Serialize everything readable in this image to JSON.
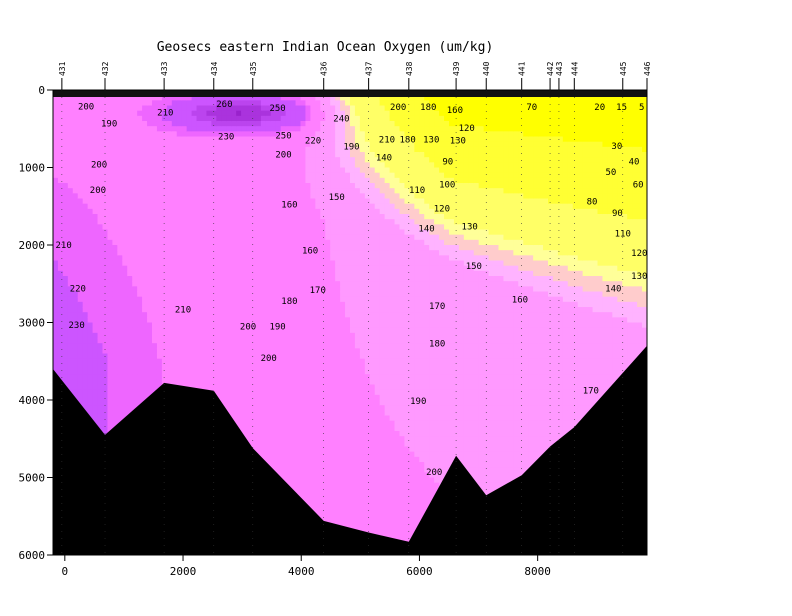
{
  "chart_data": {
    "type": "contour",
    "title": "Geosecs eastern Indian Ocean Oxygen (um/kg)",
    "xlabel": "",
    "ylabel": "",
    "xlim": [
      -200,
      9850
    ],
    "ylim": [
      6000,
      0
    ],
    "x_ticks": [
      0,
      2000,
      4000,
      6000,
      8000
    ],
    "y_ticks": [
      0,
      1000,
      2000,
      3000,
      4000,
      5000,
      6000
    ],
    "stations": [
      {
        "name": "431",
        "x": -50
      },
      {
        "name": "432",
        "x": 680
      },
      {
        "name": "433",
        "x": 1680
      },
      {
        "name": "434",
        "x": 2520
      },
      {
        "name": "435",
        "x": 3180
      },
      {
        "name": "436",
        "x": 4380
      },
      {
        "name": "437",
        "x": 5140
      },
      {
        "name": "438",
        "x": 5820
      },
      {
        "name": "439",
        "x": 6620
      },
      {
        "name": "440",
        "x": 7130
      },
      {
        "name": "441",
        "x": 7730
      },
      {
        "name": "442",
        "x": 8210
      },
      {
        "name": "443",
        "x": 8360
      },
      {
        "name": "444",
        "x": 8620
      },
      {
        "name": "445",
        "x": 9440
      },
      {
        "name": "446",
        "x": 9850
      }
    ],
    "color_levels": [
      {
        "min": 0,
        "color": "#ffff00"
      },
      {
        "min": 40,
        "color": "#ffff33"
      },
      {
        "min": 100,
        "color": "#ffff66"
      },
      {
        "min": 140,
        "color": "#ffff99"
      },
      {
        "min": 150,
        "color": "#ffcccc"
      },
      {
        "min": 160,
        "color": "#ffb3ff"
      },
      {
        "min": 170,
        "color": "#ff99ff"
      },
      {
        "min": 190,
        "color": "#ff80ff"
      },
      {
        "min": 210,
        "color": "#ee66ff"
      },
      {
        "min": 220,
        "color": "#cc55ff"
      },
      {
        "min": 240,
        "color": "#bb44ee"
      },
      {
        "min": 250,
        "color": "#aa33dd"
      },
      {
        "min": 260,
        "color": "#9922cc"
      }
    ],
    "contour_labels": [
      {
        "text": "200",
        "x": 360,
        "y": 210
      },
      {
        "text": "190",
        "x": 750,
        "y": 430
      },
      {
        "text": "210",
        "x": 1700,
        "y": 290
      },
      {
        "text": "200",
        "x": 580,
        "y": 960
      },
      {
        "text": "260",
        "x": 2700,
        "y": 180
      },
      {
        "text": "250",
        "x": 3600,
        "y": 230
      },
      {
        "text": "230",
        "x": 2730,
        "y": 600
      },
      {
        "text": "250",
        "x": 3700,
        "y": 590
      },
      {
        "text": "240",
        "x": 4680,
        "y": 370
      },
      {
        "text": "220",
        "x": 4200,
        "y": 650
      },
      {
        "text": "190",
        "x": 4850,
        "y": 730
      },
      {
        "text": "200",
        "x": 3700,
        "y": 830
      },
      {
        "text": "210",
        "x": 5450,
        "y": 640
      },
      {
        "text": "180",
        "x": 5800,
        "y": 640
      },
      {
        "text": "130",
        "x": 6200,
        "y": 640
      },
      {
        "text": "140",
        "x": 5400,
        "y": 870
      },
      {
        "text": "200",
        "x": 5640,
        "y": 220
      },
      {
        "text": "180",
        "x": 6150,
        "y": 220
      },
      {
        "text": "160",
        "x": 6600,
        "y": 260
      },
      {
        "text": "120",
        "x": 6800,
        "y": 490
      },
      {
        "text": "130",
        "x": 6650,
        "y": 650
      },
      {
        "text": "70",
        "x": 7900,
        "y": 220
      },
      {
        "text": "20",
        "x": 9050,
        "y": 220
      },
      {
        "text": "15",
        "x": 9420,
        "y": 220
      },
      {
        "text": "5",
        "x": 9760,
        "y": 220
      },
      {
        "text": "30",
        "x": 9340,
        "y": 720
      },
      {
        "text": "40",
        "x": 9630,
        "y": 920
      },
      {
        "text": "50",
        "x": 9240,
        "y": 1060
      },
      {
        "text": "60",
        "x": 9700,
        "y": 1220
      },
      {
        "text": "80",
        "x": 8920,
        "y": 1440
      },
      {
        "text": "90",
        "x": 9350,
        "y": 1590
      },
      {
        "text": "90",
        "x": 6480,
        "y": 920
      },
      {
        "text": "100",
        "x": 6470,
        "y": 1220
      },
      {
        "text": "110",
        "x": 5960,
        "y": 1290
      },
      {
        "text": "120",
        "x": 6380,
        "y": 1530
      },
      {
        "text": "130",
        "x": 6850,
        "y": 1760
      },
      {
        "text": "140",
        "x": 6120,
        "y": 1790
      },
      {
        "text": "110",
        "x": 9440,
        "y": 1850
      },
      {
        "text": "120",
        "x": 9720,
        "y": 2100
      },
      {
        "text": "130",
        "x": 9720,
        "y": 2400
      },
      {
        "text": "140",
        "x": 9280,
        "y": 2560
      },
      {
        "text": "150",
        "x": 6920,
        "y": 2270
      },
      {
        "text": "150",
        "x": 4600,
        "y": 1380
      },
      {
        "text": "160",
        "x": 3800,
        "y": 1480
      },
      {
        "text": "160",
        "x": 4150,
        "y": 2070
      },
      {
        "text": "160",
        "x": 7700,
        "y": 2700
      },
      {
        "text": "170",
        "x": 4280,
        "y": 2580
      },
      {
        "text": "170",
        "x": 6300,
        "y": 2790
      },
      {
        "text": "170",
        "x": 8900,
        "y": 3880
      },
      {
        "text": "180",
        "x": 3800,
        "y": 2720
      },
      {
        "text": "180",
        "x": 6300,
        "y": 3270
      },
      {
        "text": "190",
        "x": 3600,
        "y": 3050
      },
      {
        "text": "190",
        "x": 5980,
        "y": 4010
      },
      {
        "text": "200",
        "x": 3100,
        "y": 3050
      },
      {
        "text": "200",
        "x": 3450,
        "y": 3460
      },
      {
        "text": "200",
        "x": 6250,
        "y": 4930
      },
      {
        "text": "200",
        "x": 560,
        "y": 1290
      },
      {
        "text": "210",
        "x": -20,
        "y": 2000
      },
      {
        "text": "210",
        "x": 2000,
        "y": 2830
      },
      {
        "text": "220",
        "x": 220,
        "y": 2560
      },
      {
        "text": "230",
        "x": 200,
        "y": 3030
      }
    ],
    "bathymetry": [
      [
        -200,
        3600
      ],
      [
        680,
        4450
      ],
      [
        1680,
        3780
      ],
      [
        2520,
        3880
      ],
      [
        3180,
        4620
      ],
      [
        4380,
        5560
      ],
      [
        5140,
        5710
      ],
      [
        5820,
        5830
      ],
      [
        6620,
        4720
      ],
      [
        7130,
        5230
      ],
      [
        7730,
        4970
      ],
      [
        8210,
        4600
      ],
      [
        8620,
        4350
      ],
      [
        9440,
        3650
      ],
      [
        9850,
        3300
      ]
    ]
  }
}
